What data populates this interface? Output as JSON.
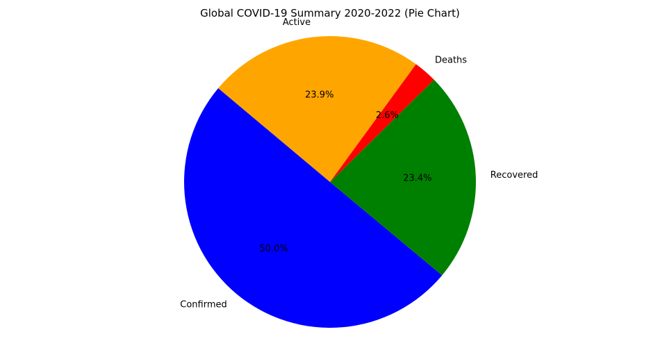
{
  "chart_data": {
    "type": "pie",
    "title": "Global COVID-19 Summary 2020-2022 (Pie Chart)",
    "start_angle_deg": 140,
    "direction": "counterclockwise",
    "slices": [
      {
        "label": "Confirmed",
        "percent": 50.0,
        "percent_label": "50.0%",
        "color": "#0000ff"
      },
      {
        "label": "Recovered",
        "percent": 23.4,
        "percent_label": "23.4%",
        "color": "#008000"
      },
      {
        "label": "Deaths",
        "percent": 2.6,
        "percent_label": "2.6%",
        "color": "#ff0000"
      },
      {
        "label": "Active",
        "percent": 23.9,
        "percent_label": "23.9%",
        "color": "#ffa500"
      }
    ]
  }
}
